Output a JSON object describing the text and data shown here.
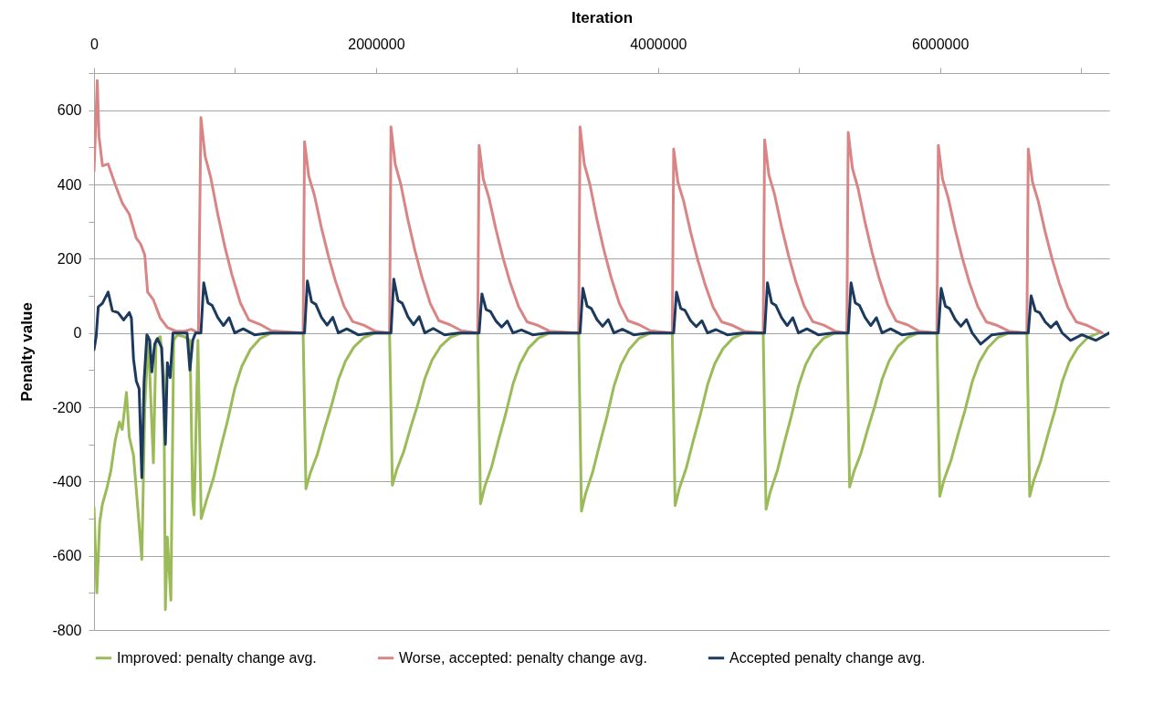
{
  "chart_data": {
    "type": "line",
    "xlabel": "Iteration",
    "ylabel": "Penalty value",
    "xlim": [
      0,
      7200000
    ],
    "xticks": [
      0,
      {
        "value": 1000000,
        "label": null
      },
      2000000,
      {
        "value": 3000000,
        "label": null
      },
      4000000,
      {
        "value": 5000000,
        "label": null
      },
      6000000,
      {
        "value": 7000000,
        "label": null
      }
    ],
    "ylim": [
      -800,
      700
    ],
    "yticks": [
      -800,
      {
        "value": -700,
        "label": null
      },
      -600,
      {
        "value": -500,
        "label": null
      },
      -400,
      {
        "value": -300,
        "label": null
      },
      -200,
      {
        "value": -100,
        "label": null
      },
      0,
      {
        "value": 100,
        "label": null
      },
      200,
      {
        "value": 300,
        "label": null
      },
      400,
      {
        "value": 500,
        "label": null
      },
      600,
      {
        "value": 700,
        "label": null
      }
    ],
    "grid": "y",
    "legend": "bottom",
    "series": [
      {
        "name": "Improved: penalty change avg.",
        "color": "#9bbb59",
        "x": [
          0,
          20000,
          40000,
          60000,
          90000,
          120000,
          150000,
          180000,
          200000,
          230000,
          250000,
          280000,
          310000,
          339000,
          360000,
          385000,
          405000,
          421000,
          440000,
          470000,
          495000,
          506000,
          520000,
          545000,
          565000,
          590000,
          640000,
          680000,
          700000,
          710000,
          737000,
          760000,
          798000,
          848000,
          898000,
          948000,
          998000,
          1048000,
          1108000,
          1178000,
          1258000,
          1483000,
          1503000,
          1533000,
          1583000,
          1633000,
          1683000,
          1733000,
          1783000,
          1843000,
          1913000,
          1993000,
          2096000,
          2116000,
          2146000,
          2196000,
          2246000,
          2296000,
          2346000,
          2396000,
          2456000,
          2526000,
          2606000,
          2721000,
          2741000,
          2771000,
          2821000,
          2871000,
          2921000,
          2971000,
          3021000,
          3081000,
          3151000,
          3231000,
          3437000,
          3457000,
          3487000,
          3537000,
          3587000,
          3637000,
          3687000,
          3737000,
          3797000,
          3867000,
          3947000,
          4101000,
          4121000,
          4151000,
          4201000,
          4251000,
          4301000,
          4351000,
          4401000,
          4461000,
          4531000,
          4611000,
          4746000,
          4766000,
          4796000,
          4846000,
          4896000,
          4946000,
          4996000,
          5046000,
          5106000,
          5176000,
          5256000,
          5339000,
          5359000,
          5389000,
          5439000,
          5489000,
          5539000,
          5589000,
          5639000,
          5699000,
          5769000,
          5849000,
          5978000,
          5998000,
          6028000,
          6078000,
          6128000,
          6178000,
          6228000,
          6278000,
          6338000,
          6408000,
          6488000,
          6616000,
          6636000,
          6666000,
          6716000,
          6766000,
          6816000,
          6866000,
          6916000,
          6976000,
          7046000,
          7126000
        ],
        "values": [
          -470,
          -700,
          -510,
          -460,
          -420,
          -370,
          -290,
          -240,
          -260,
          -160,
          -280,
          -330,
          -470,
          -610,
          -200,
          -10,
          -200,
          -350,
          -20,
          -10,
          -120,
          -745,
          -550,
          -720,
          -20,
          -5,
          -10,
          -20,
          -450,
          -490,
          -20,
          -500,
          -450,
          -390,
          -310,
          -235,
          -150,
          -90,
          -45,
          -15,
          0,
          0,
          -420,
          -378,
          -328,
          -260,
          -197,
          -126,
          -76,
          -38,
          -13,
          0,
          0,
          -410,
          -369,
          -320,
          -254,
          -193,
          -123,
          -74,
          -37,
          -12,
          0,
          0,
          -460,
          -414,
          -359,
          -285,
          -216,
          -138,
          -83,
          -41,
          -14,
          0,
          0,
          -480,
          -432,
          -374,
          -298,
          -226,
          -144,
          -86,
          -43,
          -14,
          0,
          0,
          -465,
          -419,
          -363,
          -288,
          -219,
          -140,
          -84,
          -42,
          -14,
          0,
          0,
          -475,
          -428,
          -371,
          -295,
          -223,
          -143,
          -86,
          -43,
          -14,
          0,
          0,
          -415,
          -374,
          -324,
          -257,
          -195,
          -125,
          -75,
          -37,
          -12,
          0,
          0,
          -440,
          -396,
          -343,
          -273,
          -207,
          -132,
          -79,
          -40,
          -13,
          0,
          0,
          -440,
          -396,
          -343,
          -273,
          -207,
          -132,
          -79,
          -40,
          -13,
          0
        ]
      },
      {
        "name": "Worse, accepted: penalty change avg.",
        "color": "#d98585",
        "x": [
          0,
          23000,
          35000,
          60000,
          100000,
          150000,
          200000,
          250000,
          300000,
          330000,
          360000,
          380000,
          420000,
          470000,
          520000,
          580000,
          640000,
          690000,
          740000,
          758000,
          788000,
          828000,
          878000,
          928000,
          978000,
          1038000,
          1098000,
          1178000,
          1258000,
          1483000,
          1493000,
          1523000,
          1563000,
          1613000,
          1663000,
          1713000,
          1773000,
          1833000,
          1913000,
          1993000,
          2096000,
          2106000,
          2136000,
          2176000,
          2226000,
          2276000,
          2326000,
          2386000,
          2446000,
          2526000,
          2606000,
          2721000,
          2731000,
          2761000,
          2801000,
          2851000,
          2901000,
          2951000,
          3011000,
          3071000,
          3151000,
          3231000,
          3437000,
          3447000,
          3477000,
          3517000,
          3567000,
          3617000,
          3667000,
          3727000,
          3787000,
          3867000,
          3947000,
          4101000,
          4111000,
          4141000,
          4181000,
          4231000,
          4281000,
          4331000,
          4391000,
          4451000,
          4531000,
          4611000,
          4746000,
          4756000,
          4786000,
          4826000,
          4876000,
          4926000,
          4976000,
          5036000,
          5096000,
          5176000,
          5256000,
          5339000,
          5349000,
          5379000,
          5419000,
          5469000,
          5519000,
          5569000,
          5629000,
          5689000,
          5769000,
          5849000,
          5978000,
          5988000,
          6018000,
          6058000,
          6108000,
          6158000,
          6208000,
          6268000,
          6328000,
          6408000,
          6488000,
          6616000,
          6626000,
          6656000,
          6696000,
          6746000,
          6796000,
          6846000,
          6906000,
          6966000,
          7046000,
          7126000,
          7150000
        ],
        "values": [
          435,
          680,
          530,
          450,
          455,
          400,
          350,
          320,
          255,
          240,
          210,
          110,
          90,
          40,
          15,
          5,
          5,
          10,
          0,
          580,
          476,
          418,
          319,
          232,
          157,
          81,
          35,
          23,
          6,
          0,
          515,
          422,
          371,
          283,
          206,
          139,
          72,
          31,
          21,
          5,
          0,
          555,
          455,
          400,
          305,
          222,
          150,
          78,
          33,
          22,
          6,
          0,
          505,
          414,
          364,
          278,
          202,
          136,
          71,
          30,
          20,
          5,
          0,
          555,
          455,
          400,
          305,
          222,
          150,
          78,
          33,
          22,
          6,
          0,
          495,
          406,
          356,
          272,
          198,
          134,
          69,
          30,
          20,
          5,
          0,
          520,
          426,
          374,
          286,
          208,
          140,
          73,
          31,
          21,
          5,
          0,
          540,
          443,
          389,
          297,
          216,
          146,
          76,
          32,
          22,
          5,
          0,
          505,
          414,
          364,
          278,
          202,
          136,
          71,
          30,
          20,
          5,
          0,
          495,
          406,
          356,
          272,
          198,
          134,
          69,
          30,
          20,
          5,
          0
        ]
      },
      {
        "name": "Accepted penalty change avg.",
        "color": "#1b3a5e",
        "x": [
          0,
          15000,
          30000,
          60000,
          100000,
          130000,
          170000,
          210000,
          250000,
          265000,
          280000,
          300000,
          320000,
          339000,
          355000,
          375000,
          395000,
          410000,
          430000,
          450000,
          480000,
          506000,
          520000,
          540000,
          560000,
          660000,
          680000,
          700000,
          720000,
          740000,
          758000,
          778000,
          808000,
          838000,
          878000,
          918000,
          958000,
          998000,
          1058000,
          1138000,
          1238000,
          1483000,
          1493000,
          1513000,
          1543000,
          1573000,
          1613000,
          1653000,
          1693000,
          1733000,
          1793000,
          1873000,
          1973000,
          2096000,
          2106000,
          2126000,
          2156000,
          2186000,
          2226000,
          2266000,
          2306000,
          2346000,
          2406000,
          2486000,
          2586000,
          2721000,
          2731000,
          2751000,
          2781000,
          2811000,
          2851000,
          2891000,
          2931000,
          2971000,
          3031000,
          3111000,
          3211000,
          3437000,
          3447000,
          3467000,
          3497000,
          3527000,
          3567000,
          3607000,
          3647000,
          3687000,
          3747000,
          3827000,
          3927000,
          4101000,
          4111000,
          4131000,
          4161000,
          4191000,
          4231000,
          4271000,
          4311000,
          4351000,
          4411000,
          4491000,
          4591000,
          4746000,
          4756000,
          4776000,
          4806000,
          4836000,
          4876000,
          4916000,
          4956000,
          4996000,
          5056000,
          5136000,
          5236000,
          5339000,
          5349000,
          5369000,
          5399000,
          5429000,
          5469000,
          5509000,
          5549000,
          5589000,
          5649000,
          5729000,
          5829000,
          5978000,
          5988000,
          6008000,
          6038000,
          6068000,
          6108000,
          6148000,
          6188000,
          6228000,
          6288000,
          6368000,
          6468000,
          6616000,
          6626000,
          6646000,
          6676000,
          6706000,
          6746000,
          6786000,
          6826000,
          6866000,
          6926000,
          7006000,
          7106000,
          7200000
        ],
        "values": [
          -45,
          -10,
          70,
          80,
          110,
          60,
          55,
          35,
          55,
          40,
          -70,
          -130,
          -150,
          -390,
          -130,
          -5,
          -20,
          -105,
          -30,
          -15,
          -40,
          -300,
          -80,
          -120,
          0,
          0,
          -100,
          -20,
          0,
          0,
          0,
          135,
          81,
          74,
          41,
          20,
          41,
          0,
          11,
          -5,
          0,
          0,
          0,
          140,
          84,
          77,
          42,
          21,
          42,
          0,
          11,
          -5,
          0,
          0,
          0,
          145,
          87,
          80,
          44,
          22,
          44,
          0,
          12,
          -5,
          0,
          0,
          0,
          105,
          63,
          58,
          32,
          16,
          32,
          0,
          8,
          -5,
          0,
          0,
          0,
          120,
          72,
          66,
          36,
          18,
          36,
          0,
          10,
          -5,
          0,
          0,
          0,
          110,
          66,
          61,
          33,
          17,
          33,
          0,
          9,
          -5,
          0,
          0,
          0,
          135,
          81,
          74,
          41,
          20,
          41,
          0,
          11,
          -5,
          0,
          0,
          0,
          135,
          81,
          74,
          41,
          20,
          41,
          0,
          11,
          -5,
          0,
          0,
          0,
          120,
          72,
          66,
          36,
          18,
          36,
          0,
          -30,
          -5,
          0,
          0,
          0,
          100,
          60,
          55,
          30,
          15,
          30,
          0,
          -20,
          -5,
          -20,
          0
        ]
      }
    ]
  }
}
